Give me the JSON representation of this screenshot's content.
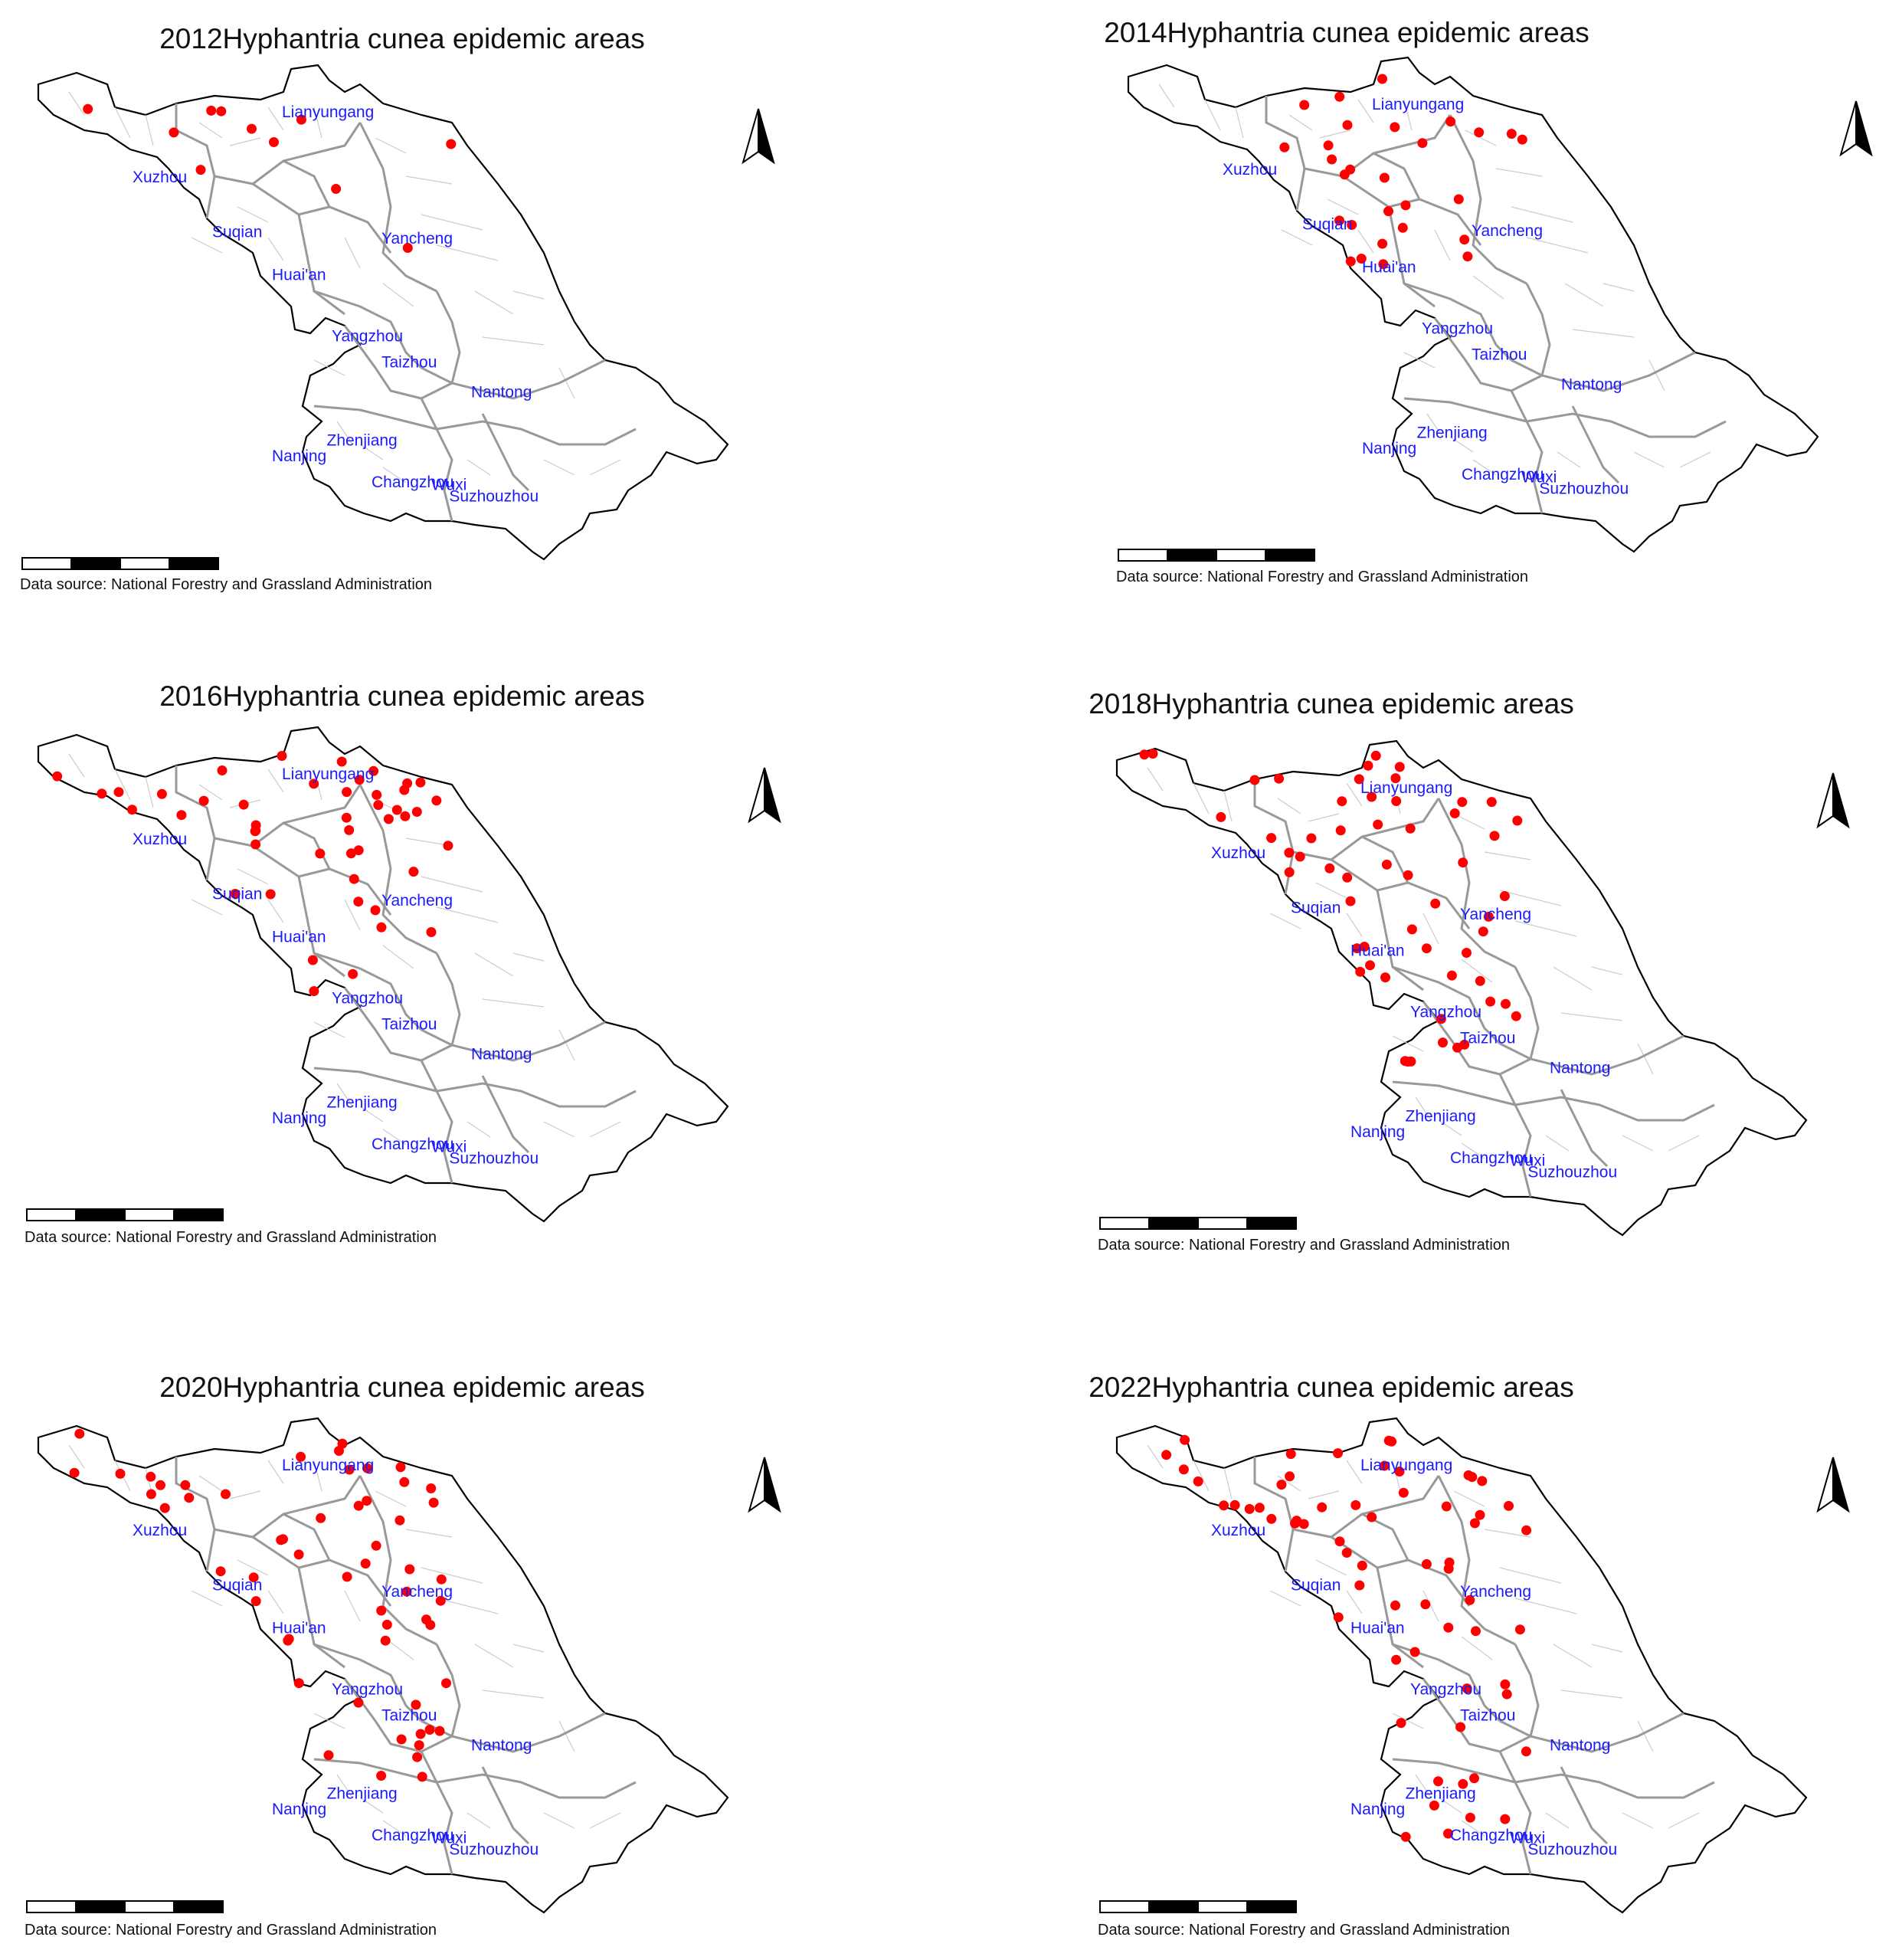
{
  "common": {
    "data_source": "Data source: National Forestry and Grassland Administration",
    "colors": {
      "label": "#1a1aff",
      "point": "#ff0000",
      "boundary": "#000000",
      "city_boundary": "#999999",
      "county_boundary": "#cccccc"
    },
    "cities": [
      "Lianyungang",
      "Xuzhou",
      "Suqian",
      "Yancheng",
      "Huai'an",
      "Yangzhou",
      "Taizhou",
      "Nantong",
      "Nanjing",
      "Zhenjiang",
      "Changzhou",
      "Wuxi",
      "Suzhouzhou"
    ]
  },
  "maps": [
    {
      "year": "2012",
      "title": "2012Hyphantria cunea epidemic areas",
      "epidemic_points": 11
    },
    {
      "year": "2014",
      "title": "2014Hyphantria cunea epidemic areas",
      "epidemic_points": 28
    },
    {
      "year": "2016",
      "title": "2016Hyphantria cunea epidemic areas",
      "epidemic_points": 46
    },
    {
      "year": "2018",
      "title": "2018Hyphantria cunea epidemic areas",
      "epidemic_points": 56
    },
    {
      "year": "2020",
      "title": "2020Hyphantria cunea epidemic areas",
      "epidemic_points": 56
    },
    {
      "year": "2022",
      "title": "2022Hyphantria cunea epidemic areas",
      "epidemic_points": 62
    }
  ]
}
